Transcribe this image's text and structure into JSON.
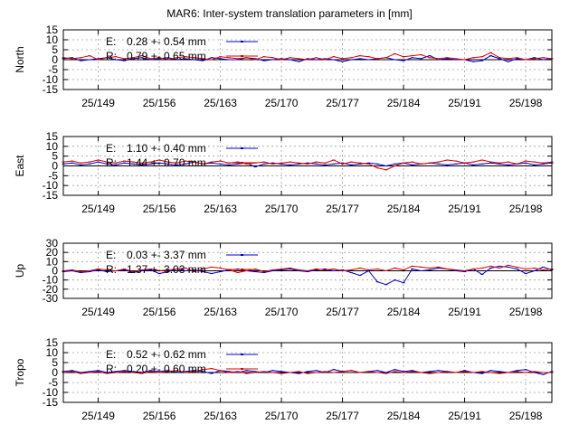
{
  "title": "MAR6: Inter-system translation parameters in [mm]",
  "colors": {
    "E": "#0000cc",
    "R": "#dd0000"
  },
  "chart_data": [
    {
      "type": "line",
      "ylabel": "North",
      "ylim": [
        -15,
        15
      ],
      "yticks": [
        15,
        10,
        5,
        0,
        -5,
        -10,
        -15
      ],
      "xlim": [
        145,
        201
      ],
      "xticks": [
        149,
        156,
        163,
        170,
        177,
        184,
        191,
        198
      ],
      "xtick_labels": [
        "25/149",
        "25/156",
        "25/163",
        "25/170",
        "25/177",
        "25/184",
        "25/191",
        "25/198"
      ],
      "legend": [
        {
          "key": "E",
          "text": "0.28 +- 0.54 mm"
        },
        {
          "key": "R",
          "text": "0.79 +- 0.65 mm"
        }
      ],
      "series": [
        {
          "name": "E",
          "x": [
            145,
            146,
            147,
            148,
            149,
            150,
            151,
            152,
            153,
            154,
            155,
            156,
            157,
            158,
            159,
            160,
            161,
            162,
            163,
            164,
            165,
            166,
            167,
            168,
            169,
            170,
            171,
            172,
            173,
            174,
            175,
            176,
            177,
            178,
            179,
            180,
            181,
            182,
            183,
            184,
            185,
            186,
            187,
            188,
            189,
            190,
            191,
            192,
            193,
            194,
            195,
            196,
            197,
            198,
            199,
            200,
            201
          ],
          "values": [
            0.5,
            1,
            -0.5,
            0,
            0.5,
            1,
            0,
            -0.5,
            0.5,
            1,
            0,
            0.5,
            1,
            0,
            0.5,
            0,
            -0.5,
            1,
            0.5,
            0,
            0,
            1,
            0.5,
            -0.5,
            0,
            0.5,
            0,
            -1,
            0.5,
            0,
            0.5,
            0,
            -1,
            0,
            0.5,
            0,
            0.5,
            1,
            0,
            -0.5,
            1,
            0.5,
            2,
            0,
            0.5,
            0,
            0,
            -1,
            -0.5,
            2,
            0.5,
            -1,
            0.5,
            0,
            1,
            0,
            0.5
          ]
        },
        {
          "name": "R",
          "x": [
            145,
            146,
            147,
            148,
            149,
            150,
            151,
            152,
            153,
            154,
            155,
            156,
            157,
            158,
            159,
            160,
            161,
            162,
            163,
            164,
            165,
            166,
            167,
            168,
            169,
            170,
            171,
            172,
            173,
            174,
            175,
            176,
            177,
            178,
            179,
            180,
            181,
            182,
            183,
            184,
            185,
            186,
            187,
            188,
            189,
            190,
            191,
            192,
            193,
            194,
            195,
            196,
            197,
            198,
            199,
            200,
            201
          ],
          "values": [
            1,
            0.5,
            1,
            2,
            0,
            1,
            1.5,
            0.5,
            1,
            2,
            0.5,
            1,
            0,
            1,
            1.5,
            1,
            0.5,
            0,
            1.5,
            1,
            0.5,
            1,
            0,
            1.5,
            1,
            0,
            1,
            0.5,
            0,
            1,
            0,
            1.5,
            0.5,
            1,
            2,
            1.5,
            0.5,
            1,
            3,
            1.5,
            2,
            2.5,
            1,
            0.5,
            1,
            0.5,
            0,
            1,
            1.5,
            3.5,
            1,
            0.5,
            1,
            0,
            0.5,
            1,
            0.5
          ]
        }
      ]
    },
    {
      "type": "line",
      "ylabel": "East",
      "ylim": [
        -15,
        15
      ],
      "yticks": [
        15,
        10,
        5,
        0,
        -5,
        -10,
        -15
      ],
      "xlim": [
        145,
        201
      ],
      "xticks": [
        149,
        156,
        163,
        170,
        177,
        184,
        191,
        198
      ],
      "xtick_labels": [
        "25/149",
        "25/156",
        "25/163",
        "25/170",
        "25/177",
        "25/184",
        "25/191",
        "25/198"
      ],
      "legend": [
        {
          "key": "E",
          "text": "1.10 +- 0.40 mm"
        },
        {
          "key": "R",
          "text": "1.44 +- 0.70 mm"
        }
      ],
      "series": [
        {
          "name": "E",
          "x": [
            145,
            146,
            147,
            148,
            149,
            150,
            151,
            152,
            153,
            154,
            155,
            156,
            157,
            158,
            159,
            160,
            161,
            162,
            163,
            164,
            165,
            166,
            167,
            168,
            169,
            170,
            171,
            172,
            173,
            174,
            175,
            176,
            177,
            178,
            179,
            180,
            181,
            182,
            183,
            184,
            185,
            186,
            187,
            188,
            189,
            190,
            191,
            192,
            193,
            194,
            195,
            196,
            197,
            198,
            199,
            200,
            201
          ],
          "values": [
            1,
            1.5,
            0.5,
            1,
            2,
            1,
            0.5,
            1.5,
            1,
            0.5,
            1,
            1.5,
            1,
            0.5,
            1,
            2,
            1,
            1.5,
            1,
            0.5,
            1,
            1.5,
            -0.5,
            1,
            1.5,
            1,
            0.5,
            1,
            1.5,
            1,
            0.5,
            1,
            1.5,
            0.5,
            1,
            1.5,
            1,
            0,
            1,
            1.5,
            0.5,
            1,
            1.5,
            1,
            0.5,
            1,
            1.5,
            0.5,
            1,
            1.5,
            1,
            0.5,
            1,
            1.5,
            0.5,
            1,
            1.5
          ]
        },
        {
          "name": "R",
          "x": [
            145,
            146,
            147,
            148,
            149,
            150,
            151,
            152,
            153,
            154,
            155,
            156,
            157,
            158,
            159,
            160,
            161,
            162,
            163,
            164,
            165,
            166,
            167,
            168,
            169,
            170,
            171,
            172,
            173,
            174,
            175,
            176,
            177,
            178,
            179,
            180,
            181,
            182,
            183,
            184,
            185,
            186,
            187,
            188,
            189,
            190,
            191,
            192,
            193,
            194,
            195,
            196,
            197,
            198,
            199,
            200,
            201
          ],
          "values": [
            2,
            2.5,
            1.5,
            2,
            3,
            2,
            1.5,
            2.5,
            2,
            1.5,
            2,
            3,
            2,
            1.5,
            2.5,
            2,
            1,
            2,
            2.5,
            1.5,
            2,
            1,
            1.5,
            2,
            1,
            1.5,
            2,
            1.5,
            1,
            2,
            1.5,
            3,
            1,
            2,
            1.5,
            1,
            -1,
            -2,
            0,
            1.5,
            2,
            1,
            1.5,
            2,
            3,
            2.5,
            1.5,
            2,
            3,
            2,
            1.5,
            2,
            1,
            2.5,
            2,
            1.5,
            2
          ]
        }
      ]
    },
    {
      "type": "line",
      "ylabel": "Up",
      "ylim": [
        -30,
        30
      ],
      "yticks": [
        30,
        20,
        10,
        0,
        -10,
        -20,
        -30
      ],
      "xlim": [
        145,
        201
      ],
      "xticks": [
        149,
        156,
        163,
        170,
        177,
        184,
        191,
        198
      ],
      "xtick_labels": [
        "25/149",
        "25/156",
        "25/163",
        "25/170",
        "25/177",
        "25/184",
        "25/191",
        "25/198"
      ],
      "legend": [
        {
          "key": "E",
          "text": "0.03 +- 3.37 mm"
        },
        {
          "key": "R",
          "text": "1.37 +- 3.03 mm"
        }
      ],
      "series": [
        {
          "name": "E",
          "x": [
            145,
            146,
            147,
            148,
            149,
            150,
            151,
            152,
            153,
            154,
            155,
            156,
            157,
            158,
            159,
            160,
            161,
            162,
            163,
            164,
            165,
            166,
            167,
            168,
            169,
            170,
            171,
            172,
            173,
            174,
            175,
            176,
            177,
            178,
            179,
            180,
            181,
            182,
            183,
            184,
            185,
            186,
            187,
            188,
            189,
            190,
            191,
            192,
            193,
            194,
            195,
            196,
            197,
            198,
            199,
            200,
            201
          ],
          "values": [
            -1,
            0,
            -2,
            -1,
            1,
            -1,
            0,
            1,
            -2,
            0,
            1,
            -3,
            -1,
            2,
            0,
            1,
            -1,
            -3,
            -1,
            1,
            2,
            0,
            -1,
            -2,
            0,
            1,
            2,
            0,
            -1,
            1,
            2,
            0,
            1,
            -2,
            -5,
            0,
            -12,
            -15,
            -10,
            -13,
            2,
            0,
            1,
            3,
            2,
            0,
            -1,
            2,
            -4,
            3,
            5,
            4,
            2,
            -3,
            0,
            4,
            1
          ]
        },
        {
          "name": "R",
          "x": [
            145,
            146,
            147,
            148,
            149,
            150,
            151,
            152,
            153,
            154,
            155,
            156,
            157,
            158,
            159,
            160,
            161,
            162,
            163,
            164,
            165,
            166,
            167,
            168,
            169,
            170,
            171,
            172,
            173,
            174,
            175,
            176,
            177,
            178,
            179,
            180,
            181,
            182,
            183,
            184,
            185,
            186,
            187,
            188,
            189,
            190,
            191,
            192,
            193,
            194,
            195,
            196,
            197,
            198,
            199,
            200,
            201
          ],
          "values": [
            0,
            1,
            -1,
            0,
            2,
            1,
            0,
            2,
            -1,
            1,
            2,
            0,
            1,
            2,
            3,
            -1,
            2,
            4,
            3,
            1,
            -2,
            0,
            2,
            -1,
            1,
            2,
            3,
            1,
            0,
            2,
            1,
            2,
            0,
            1,
            3,
            1,
            2,
            0,
            3,
            1,
            5,
            4,
            3,
            4,
            2,
            1,
            0,
            2,
            3,
            5,
            3,
            6,
            4,
            2,
            3,
            1,
            2
          ]
        }
      ]
    },
    {
      "type": "line",
      "ylabel": "Tropo",
      "ylim": [
        -15,
        15
      ],
      "yticks": [
        15,
        10,
        5,
        0,
        -5,
        -10,
        -15
      ],
      "xlim": [
        145,
        201
      ],
      "xticks": [
        149,
        156,
        163,
        170,
        177,
        184,
        191,
        198
      ],
      "xtick_labels": [
        "25/149",
        "25/156",
        "25/163",
        "25/170",
        "25/177",
        "25/184",
        "25/191",
        "25/198"
      ],
      "legend": [
        {
          "key": "E",
          "text": "0.52 +- 0.62 mm"
        },
        {
          "key": "R",
          "text": "0.20 +- 0.60 mm"
        }
      ],
      "series": [
        {
          "name": "E",
          "x": [
            145,
            146,
            147,
            148,
            149,
            150,
            151,
            152,
            153,
            154,
            155,
            156,
            157,
            158,
            159,
            160,
            161,
            162,
            163,
            164,
            165,
            166,
            167,
            168,
            169,
            170,
            171,
            172,
            173,
            174,
            175,
            176,
            177,
            178,
            179,
            180,
            181,
            182,
            183,
            184,
            185,
            186,
            187,
            188,
            189,
            190,
            191,
            192,
            193,
            194,
            195,
            196,
            197,
            198,
            199,
            200,
            201
          ],
          "values": [
            0.5,
            1,
            0,
            0.5,
            1,
            0,
            0.5,
            1,
            0.5,
            0,
            1,
            0.5,
            1,
            0,
            0.5,
            1,
            0.5,
            -0.5,
            1,
            0.5,
            0,
            1,
            0.5,
            0,
            1,
            0.5,
            0,
            -0.5,
            0.5,
            1,
            0,
            1.5,
            0.5,
            1,
            0,
            0.5,
            1,
            0,
            1.5,
            0.5,
            1,
            0,
            0.5,
            1,
            0.5,
            0,
            1,
            0,
            -0.5,
            1,
            0.5,
            0,
            1,
            1.5,
            0,
            -1,
            0.5
          ]
        },
        {
          "name": "R",
          "x": [
            145,
            146,
            147,
            148,
            149,
            150,
            151,
            152,
            153,
            154,
            155,
            156,
            157,
            158,
            159,
            160,
            161,
            162,
            163,
            164,
            165,
            166,
            167,
            168,
            169,
            170,
            171,
            172,
            173,
            174,
            175,
            176,
            177,
            178,
            179,
            180,
            181,
            182,
            183,
            184,
            185,
            186,
            187,
            188,
            189,
            190,
            191,
            192,
            193,
            194,
            195,
            196,
            197,
            198,
            199,
            200,
            201
          ],
          "values": [
            0,
            0.5,
            -0.5,
            0,
            0.5,
            -0.5,
            0,
            0.5,
            0,
            -0.5,
            0.5,
            0,
            0.5,
            1,
            0,
            0.5,
            1.5,
            2,
            1,
            0,
            0.5,
            -0.5,
            0,
            0.5,
            0,
            -0.5,
            0,
            0.5,
            -0.5,
            0,
            0.5,
            0,
            0.5,
            1,
            0,
            0.5,
            0,
            -0.5,
            0.5,
            0,
            0.5,
            0,
            -0.5,
            0,
            0.5,
            0,
            0.5,
            0,
            0.5,
            0,
            -0.5,
            0,
            0.5,
            0,
            0.5,
            0,
            0
          ]
        }
      ]
    }
  ]
}
